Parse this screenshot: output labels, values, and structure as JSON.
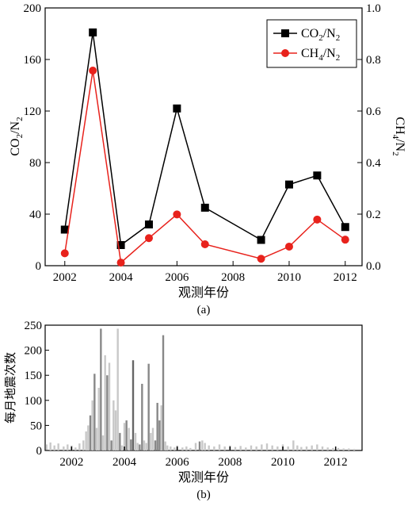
{
  "chart_data": [
    {
      "type": "line",
      "panel_label": "(a)",
      "xlabel": "观测年份",
      "ylabel_left": {
        "main": "CO",
        "sub1": "2",
        "mid": "/N",
        "sub2": "2"
      },
      "ylabel_right": {
        "main": "CH",
        "sub1": "4",
        "mid": "/N",
        "sub2": "2"
      },
      "xlim": [
        2001.3,
        2012.6
      ],
      "ylim_left": [
        0,
        200
      ],
      "ylim_right": [
        0,
        1.0
      ],
      "x_ticks": [
        2002,
        2004,
        2006,
        2008,
        2010,
        2012
      ],
      "y_left_ticks": [
        0,
        40,
        80,
        120,
        160,
        200
      ],
      "y_right_ticks": [
        "0.0",
        "0.2",
        "0.4",
        "0.6",
        "0.8",
        "1.0"
      ],
      "legend_position": "top-right",
      "series": [
        {
          "name": {
            "main": "CO",
            "sub1": "2",
            "mid": "/N",
            "sub2": "2"
          },
          "axis": "left",
          "color": "#000000",
          "marker": "square",
          "x": [
            2002,
            2003,
            2004,
            2005,
            2006,
            2007,
            2009,
            2010,
            2011,
            2012
          ],
          "y": [
            28,
            181,
            16,
            32,
            122,
            45,
            20,
            63,
            70,
            30
          ]
        },
        {
          "name": {
            "main": "CH",
            "sub1": "4",
            "mid": "/N",
            "sub2": "2"
          },
          "axis": "right",
          "color": "#e8221c",
          "marker": "circle",
          "x": [
            2002,
            2003,
            2004,
            2005,
            2006,
            2007,
            2009,
            2010,
            2011,
            2012
          ],
          "y": [
            0.048,
            0.757,
            0.012,
            0.107,
            0.199,
            0.083,
            0.027,
            0.074,
            0.179,
            0.101
          ]
        }
      ]
    },
    {
      "type": "bar",
      "panel_label": "(b)",
      "xlabel": "观测年份",
      "ylabel": "每月地震次数",
      "xlim": [
        2001.0,
        2013.0
      ],
      "ylim": [
        0,
        250
      ],
      "x_ticks": [
        2002,
        2004,
        2006,
        2008,
        2010,
        2012
      ],
      "y_ticks": [
        0,
        50,
        100,
        150,
        200,
        250
      ],
      "bars": [
        {
          "x": 2001.05,
          "v": 12,
          "c": "#c8c8c8"
        },
        {
          "x": 2001.2,
          "v": 16,
          "c": "#c8c8c8"
        },
        {
          "x": 2001.35,
          "v": 10,
          "c": "#c8c8c8"
        },
        {
          "x": 2001.5,
          "v": 14,
          "c": "#c8c8c8"
        },
        {
          "x": 2001.7,
          "v": 8,
          "c": "#c8c8c8"
        },
        {
          "x": 2001.85,
          "v": 12,
          "c": "#c8c8c8"
        },
        {
          "x": 2002.0,
          "v": 10,
          "c": "#c8c8c8"
        },
        {
          "x": 2002.15,
          "v": 6,
          "c": "#c8c8c8"
        },
        {
          "x": 2002.3,
          "v": 14,
          "c": "#c8c8c8"
        },
        {
          "x": 2002.45,
          "v": 20,
          "c": "#c8c8c8"
        },
        {
          "x": 2002.55,
          "v": 38,
          "c": "#c8c8c8"
        },
        {
          "x": 2002.63,
          "v": 50,
          "c": "#c8c8c8"
        },
        {
          "x": 2002.71,
          "v": 70,
          "c": "#888888"
        },
        {
          "x": 2002.79,
          "v": 100,
          "c": "#c8c8c8"
        },
        {
          "x": 2002.87,
          "v": 153,
          "c": "#888888"
        },
        {
          "x": 2002.95,
          "v": 45,
          "c": "#c8c8c8"
        },
        {
          "x": 2003.03,
          "v": 125,
          "c": "#c8c8c8"
        },
        {
          "x": 2003.11,
          "v": 243,
          "c": "#888888"
        },
        {
          "x": 2003.19,
          "v": 30,
          "c": "#c8c8c8"
        },
        {
          "x": 2003.27,
          "v": 190,
          "c": "#c8c8c8"
        },
        {
          "x": 2003.35,
          "v": 150,
          "c": "#888888"
        },
        {
          "x": 2003.43,
          "v": 175,
          "c": "#c8c8c8"
        },
        {
          "x": 2003.51,
          "v": 20,
          "c": "#888888"
        },
        {
          "x": 2003.59,
          "v": 100,
          "c": "#c8c8c8"
        },
        {
          "x": 2003.67,
          "v": 80,
          "c": "#c8c8c8"
        },
        {
          "x": 2003.75,
          "v": 243,
          "c": "#c8c8c8"
        },
        {
          "x": 2003.83,
          "v": 35,
          "c": "#888888"
        },
        {
          "x": 2003.91,
          "v": 10,
          "c": "#c8c8c8"
        },
        {
          "x": 2004.0,
          "v": 55,
          "c": "#c8c8c8"
        },
        {
          "x": 2004.08,
          "v": 60,
          "c": "#888888"
        },
        {
          "x": 2004.17,
          "v": 45,
          "c": "#c8c8c8"
        },
        {
          "x": 2004.25,
          "v": 22,
          "c": "#888888"
        },
        {
          "x": 2004.33,
          "v": 180,
          "c": "#666666"
        },
        {
          "x": 2004.42,
          "v": 35,
          "c": "#c8c8c8"
        },
        {
          "x": 2004.5,
          "v": 15,
          "c": "#c8c8c8"
        },
        {
          "x": 2004.58,
          "v": 12,
          "c": "#888888"
        },
        {
          "x": 2004.67,
          "v": 133,
          "c": "#888888"
        },
        {
          "x": 2004.75,
          "v": 20,
          "c": "#c8c8c8"
        },
        {
          "x": 2004.83,
          "v": 15,
          "c": "#c8c8c8"
        },
        {
          "x": 2004.92,
          "v": 173,
          "c": "#888888"
        },
        {
          "x": 2005.0,
          "v": 35,
          "c": "#c8c8c8"
        },
        {
          "x": 2005.08,
          "v": 45,
          "c": "#c8c8c8"
        },
        {
          "x": 2005.17,
          "v": 20,
          "c": "#888888"
        },
        {
          "x": 2005.25,
          "v": 95,
          "c": "#888888"
        },
        {
          "x": 2005.33,
          "v": 60,
          "c": "#888888"
        },
        {
          "x": 2005.4,
          "v": 90,
          "c": "#c8c8c8"
        },
        {
          "x": 2005.47,
          "v": 230,
          "c": "#888888"
        },
        {
          "x": 2005.55,
          "v": 18,
          "c": "#c8c8c8"
        },
        {
          "x": 2005.63,
          "v": 10,
          "c": "#c8c8c8"
        },
        {
          "x": 2005.75,
          "v": 8,
          "c": "#c8c8c8"
        },
        {
          "x": 2005.9,
          "v": 6,
          "c": "#c8c8c8"
        },
        {
          "x": 2006.0,
          "v": 10,
          "c": "#c8c8c8"
        },
        {
          "x": 2006.2,
          "v": 6,
          "c": "#c8c8c8"
        },
        {
          "x": 2006.35,
          "v": 8,
          "c": "#c8c8c8"
        },
        {
          "x": 2006.5,
          "v": 5,
          "c": "#c8c8c8"
        },
        {
          "x": 2006.7,
          "v": 15,
          "c": "#c8c8c8"
        },
        {
          "x": 2006.85,
          "v": 18,
          "c": "#888888"
        },
        {
          "x": 2006.95,
          "v": 20,
          "c": "#c8c8c8"
        },
        {
          "x": 2007.05,
          "v": 15,
          "c": "#c8c8c8"
        },
        {
          "x": 2007.2,
          "v": 10,
          "c": "#c8c8c8"
        },
        {
          "x": 2007.4,
          "v": 8,
          "c": "#c8c8c8"
        },
        {
          "x": 2007.6,
          "v": 12,
          "c": "#c8c8c8"
        },
        {
          "x": 2007.8,
          "v": 8,
          "c": "#c8c8c8"
        },
        {
          "x": 2008.0,
          "v": 10,
          "c": "#c8c8c8"
        },
        {
          "x": 2008.2,
          "v": 7,
          "c": "#c8c8c8"
        },
        {
          "x": 2008.4,
          "v": 9,
          "c": "#c8c8c8"
        },
        {
          "x": 2008.6,
          "v": 6,
          "c": "#c8c8c8"
        },
        {
          "x": 2008.8,
          "v": 10,
          "c": "#c8c8c8"
        },
        {
          "x": 2009.0,
          "v": 8,
          "c": "#c8c8c8"
        },
        {
          "x": 2009.2,
          "v": 12,
          "c": "#c8c8c8"
        },
        {
          "x": 2009.4,
          "v": 14,
          "c": "#c8c8c8"
        },
        {
          "x": 2009.6,
          "v": 10,
          "c": "#c8c8c8"
        },
        {
          "x": 2009.8,
          "v": 8,
          "c": "#c8c8c8"
        },
        {
          "x": 2010.0,
          "v": 12,
          "c": "#c8c8c8"
        },
        {
          "x": 2010.2,
          "v": 8,
          "c": "#c8c8c8"
        },
        {
          "x": 2010.4,
          "v": 20,
          "c": "#c8c8c8"
        },
        {
          "x": 2010.55,
          "v": 10,
          "c": "#c8c8c8"
        },
        {
          "x": 2010.7,
          "v": 7,
          "c": "#c8c8c8"
        },
        {
          "x": 2010.9,
          "v": 8,
          "c": "#c8c8c8"
        },
        {
          "x": 2011.1,
          "v": 10,
          "c": "#c8c8c8"
        },
        {
          "x": 2011.3,
          "v": 12,
          "c": "#c8c8c8"
        },
        {
          "x": 2011.5,
          "v": 8,
          "c": "#c8c8c8"
        },
        {
          "x": 2011.7,
          "v": 6,
          "c": "#c8c8c8"
        },
        {
          "x": 2011.9,
          "v": 5,
          "c": "#c8c8c8"
        },
        {
          "x": 2012.1,
          "v": 5,
          "c": "#c8c8c8"
        },
        {
          "x": 2012.3,
          "v": 4,
          "c": "#c8c8c8"
        },
        {
          "x": 2012.5,
          "v": 4,
          "c": "#c8c8c8"
        },
        {
          "x": 2012.7,
          "v": 3,
          "c": "#c8c8c8"
        }
      ]
    }
  ]
}
